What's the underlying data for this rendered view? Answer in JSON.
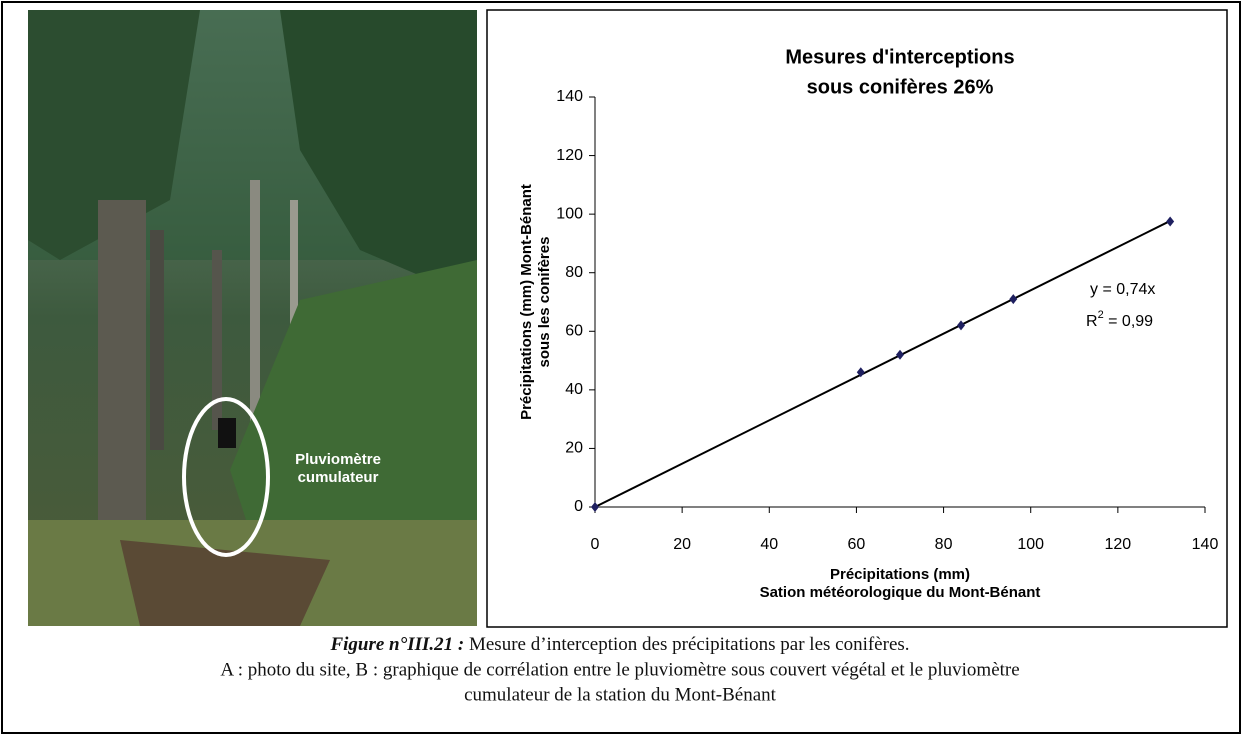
{
  "chart_data": {
    "type": "scatter",
    "title": [
      "Mesures d'interceptions",
      "sous conifères 26%"
    ],
    "x_label": [
      "Précipitations (mm)",
      "Sation météorologique du Mont-Bénant"
    ],
    "y_label": [
      "Précipitations (mm) Mont-Bénant",
      "sous les conifères"
    ],
    "x": [
      0,
      61,
      70,
      84,
      96,
      132
    ],
    "values": [
      0,
      46,
      52,
      62,
      71,
      97.5
    ],
    "color": "#1f2060",
    "xlim": [
      0,
      140
    ],
    "xticks": [
      0,
      20,
      40,
      60,
      80,
      100,
      120,
      140
    ],
    "ylim": [
      0,
      140
    ],
    "yticks": [
      0,
      20,
      40,
      60,
      80,
      100,
      120,
      140
    ],
    "grid": false,
    "trendline": {
      "slope": 0.74,
      "color": "#000000",
      "equation": "y = 0,74x",
      "r2": [
        "R",
        "2",
        " = 0,99"
      ]
    }
  },
  "photo": {
    "label": [
      "Pluviomètre",
      "cumulateur"
    ]
  },
  "caption": {
    "figure": "Figure n°III.21 :",
    "title": " Mesure d’interception des précipitations par les conifères.",
    "lines": [
      "A : photo du site, B : graphique de corrélation entre le pluviomètre sous couvert végétal et le pluviomètre",
      "cumulateur de la station du Mont-Bénant"
    ]
  }
}
